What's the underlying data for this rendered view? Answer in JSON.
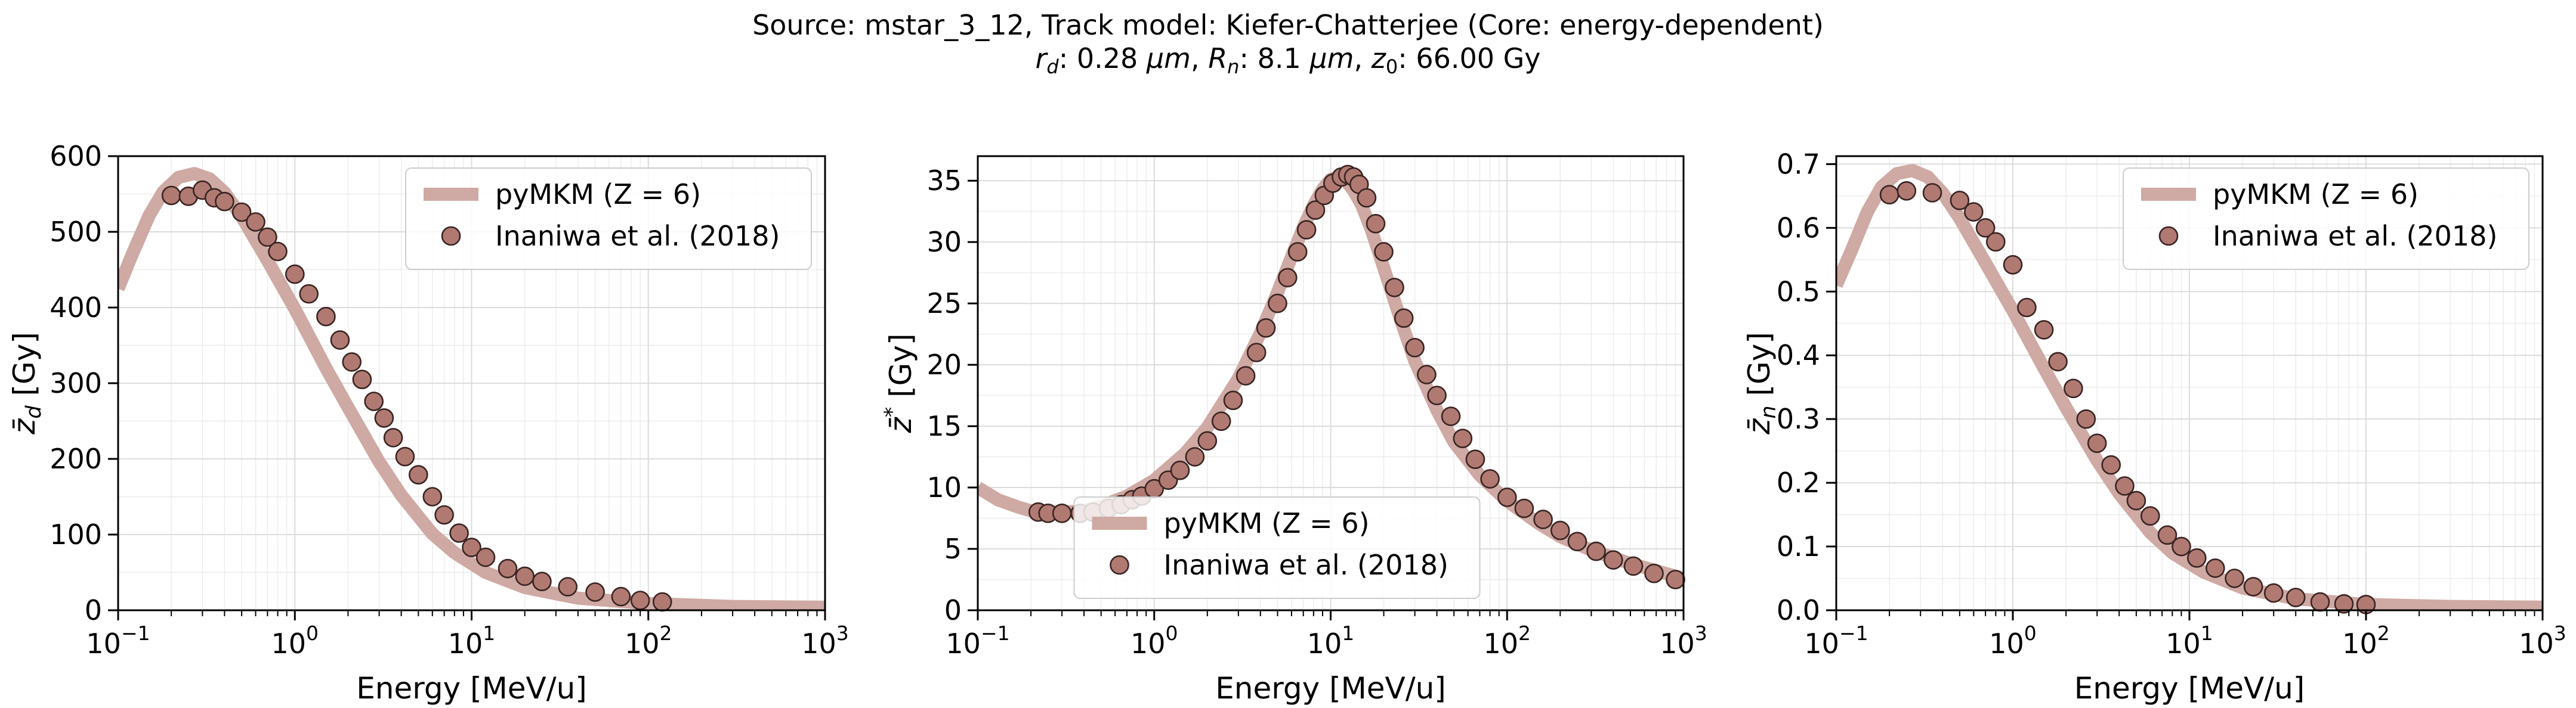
{
  "figure": {
    "title_line1": "Source: mstar_3_12, Track model: Kiefer-Chatterjee (Core: energy-dependent)",
    "title_line2": "r_d: 0.28 μm, R_n: 8.1 μm, z_0: 66.00 Gy",
    "title_parts": {
      "rd_sym": "r",
      "rd_sub": "d",
      "rd_val": ": 0.28 ",
      "rd_unit": "μm",
      "sep1": ", ",
      "rn_sym": "R",
      "rn_sub": "n",
      "rn_val": ": 8.1 ",
      "rn_unit": "μm",
      "sep2": ", ",
      "z0_sym": "z",
      "z0_sub": "0",
      "z0_val": ": 66.00 Gy"
    }
  },
  "colors": {
    "model_line": "#cfa9a3",
    "marker_face": "#b07a73",
    "marker_edge": "#3a2422"
  },
  "chart_data": [
    {
      "type": "line",
      "title": "",
      "xlabel": "Energy [MeV/u]",
      "ylabel": "z̄_d [Gy]",
      "ylabel_parts": {
        "sym": "z̄",
        "sub": "d",
        "sup": "",
        "unit": " [Gy]"
      },
      "xscale": "log",
      "xlim": [
        0.1,
        1000
      ],
      "ylim": [
        0,
        600
      ],
      "xticks": [
        {
          "label": "10",
          "exp": "−1"
        },
        {
          "label": "10",
          "exp": "0"
        },
        {
          "label": "10",
          "exp": "1"
        },
        {
          "label": "10",
          "exp": "2"
        },
        {
          "label": "10",
          "exp": "3"
        }
      ],
      "yticks": [
        "0",
        "100",
        "200",
        "300",
        "400",
        "500",
        "600"
      ],
      "yticks_values": [
        0,
        100,
        200,
        300,
        400,
        500,
        600
      ],
      "grid": true,
      "legend_position": "top-right",
      "series": [
        {
          "name": "pyMKM (Z = 6)",
          "kind": "line",
          "x": [
            0.1,
            0.12,
            0.15,
            0.18,
            0.22,
            0.27,
            0.33,
            0.4,
            0.5,
            0.7,
            1.0,
            1.5,
            2.0,
            3.0,
            4.0,
            6.0,
            8.0,
            12.0,
            20.0,
            40.0,
            100.0,
            300.0,
            1000.0
          ],
          "y": [
            425,
            470,
            522,
            553,
            572,
            577,
            570,
            552,
            520,
            462,
            398,
            320,
            268,
            196,
            152,
            101,
            76,
            50,
            30,
            16,
            9,
            5,
            4
          ]
        },
        {
          "name": "Inaniwa et al. (2018)",
          "kind": "markers",
          "x": [
            0.2,
            0.25,
            0.3,
            0.35,
            0.4,
            0.5,
            0.6,
            0.7,
            0.8,
            1.0,
            1.2,
            1.5,
            1.8,
            2.1,
            2.4,
            2.8,
            3.2,
            3.6,
            4.2,
            5.0,
            6.0,
            7.0,
            8.5,
            10.0,
            12.0,
            16.0,
            20.0,
            25.0,
            35.0,
            50.0,
            70.0,
            90.0,
            120.0
          ],
          "y": [
            548,
            547,
            555,
            545,
            540,
            526,
            513,
            493,
            474,
            444,
            418,
            388,
            357,
            328,
            305,
            276,
            254,
            228,
            203,
            179,
            150,
            126,
            102,
            83,
            70,
            55,
            45,
            38,
            31,
            24,
            18,
            13,
            11
          ]
        }
      ]
    },
    {
      "type": "line",
      "title": "",
      "xlabel": "Energy [MeV/u]",
      "ylabel": "z̄* [Gy]",
      "ylabel_parts": {
        "sym": "z̄",
        "sub": "",
        "sup": "*",
        "unit": " [Gy]"
      },
      "xscale": "log",
      "xlim": [
        0.1,
        1000
      ],
      "ylim": [
        0,
        37
      ],
      "xticks": [
        {
          "label": "10",
          "exp": "−1"
        },
        {
          "label": "10",
          "exp": "0"
        },
        {
          "label": "10",
          "exp": "1"
        },
        {
          "label": "10",
          "exp": "2"
        },
        {
          "label": "10",
          "exp": "3"
        }
      ],
      "yticks": [
        "0",
        "5",
        "10",
        "15",
        "20",
        "25",
        "30",
        "35"
      ],
      "yticks_values": [
        0,
        5,
        10,
        15,
        20,
        25,
        30,
        35
      ],
      "grid": true,
      "legend_position": "bottom-center",
      "series": [
        {
          "name": "pyMKM (Z = 6)",
          "kind": "line",
          "x": [
            0.1,
            0.13,
            0.17,
            0.2,
            0.25,
            0.3,
            0.4,
            0.5,
            0.7,
            1.0,
            1.5,
            2.0,
            3.0,
            4.0,
            5.0,
            6.0,
            7.0,
            8.0,
            9.0,
            10.0,
            11.0,
            12.0,
            13.5,
            15.0,
            17.0,
            20.0,
            25.0,
            30.0,
            40.0,
            50.0,
            70.0,
            100.0,
            150.0,
            200.0,
            300.0,
            500.0,
            1000.0
          ],
          "y": [
            10.0,
            9.0,
            8.4,
            8.1,
            8.0,
            8.0,
            8.1,
            8.5,
            9.3,
            10.6,
            12.8,
            14.9,
            18.9,
            22.6,
            25.9,
            28.8,
            31.2,
            33.0,
            34.3,
            35.1,
            35.3,
            35.1,
            34.2,
            33.0,
            31.0,
            27.9,
            23.6,
            20.3,
            16.3,
            13.7,
            11.0,
            8.9,
            7.1,
            6.0,
            4.9,
            3.8,
            2.6
          ]
        },
        {
          "name": "Inaniwa et al. (2018)",
          "kind": "markers",
          "x": [
            0.22,
            0.25,
            0.3,
            0.38,
            0.45,
            0.55,
            0.65,
            0.75,
            0.85,
            1.0,
            1.2,
            1.4,
            1.7,
            2.0,
            2.4,
            2.8,
            3.3,
            3.8,
            4.3,
            5.0,
            5.7,
            6.5,
            7.3,
            8.2,
            9.2,
            10.3,
            11.5,
            12.5,
            13.5,
            14.5,
            16.0,
            18.0,
            20.0,
            23.0,
            26.0,
            30.0,
            35.0,
            40.0,
            48.0,
            56.0,
            66.0,
            80.0,
            100.0,
            125.0,
            160.0,
            200.0,
            250.0,
            320.0,
            400.0,
            520.0,
            680.0,
            900.0
          ],
          "y": [
            8.0,
            7.9,
            7.9,
            7.9,
            8.0,
            8.3,
            8.6,
            9.0,
            9.3,
            9.9,
            10.6,
            11.4,
            12.5,
            13.8,
            15.4,
            17.1,
            19.1,
            21.0,
            23.0,
            25.0,
            27.1,
            29.2,
            31.0,
            32.6,
            33.8,
            34.8,
            35.3,
            35.5,
            35.3,
            34.7,
            33.6,
            31.5,
            29.2,
            26.3,
            23.8,
            21.4,
            19.2,
            17.5,
            15.8,
            14.0,
            12.3,
            10.7,
            9.2,
            8.3,
            7.4,
            6.5,
            5.6,
            4.8,
            4.1,
            3.6,
            3.0,
            2.5
          ]
        }
      ]
    },
    {
      "type": "line",
      "title": "",
      "xlabel": "Energy [MeV/u]",
      "ylabel": "z̄_n [Gy]",
      "ylabel_parts": {
        "sym": "z̄",
        "sub": "n",
        "sup": "",
        "unit": " [Gy]"
      },
      "xscale": "log",
      "xlim": [
        0.1,
        1000
      ],
      "ylim": [
        0,
        0.7125
      ],
      "xticks": [
        {
          "label": "10",
          "exp": "−1"
        },
        {
          "label": "10",
          "exp": "0"
        },
        {
          "label": "10",
          "exp": "1"
        },
        {
          "label": "10",
          "exp": "2"
        },
        {
          "label": "10",
          "exp": "3"
        }
      ],
      "yticks": [
        "0.0",
        "0.1",
        "0.2",
        "0.3",
        "0.4",
        "0.5",
        "0.6",
        "0.7"
      ],
      "yticks_values": [
        0,
        0.1,
        0.2,
        0.3,
        0.4,
        0.5,
        0.6,
        0.7
      ],
      "grid": true,
      "legend_position": "top-right",
      "series": [
        {
          "name": "pyMKM (Z = 6)",
          "kind": "line",
          "x": [
            0.1,
            0.12,
            0.15,
            0.18,
            0.22,
            0.27,
            0.33,
            0.4,
            0.5,
            0.7,
            1.0,
            1.5,
            2.0,
            3.0,
            4.0,
            6.0,
            8.0,
            12.0,
            20.0,
            40.0,
            100.0,
            300.0,
            1000.0
          ],
          "y": [
            0.51,
            0.56,
            0.625,
            0.664,
            0.685,
            0.69,
            0.68,
            0.655,
            0.615,
            0.545,
            0.47,
            0.38,
            0.318,
            0.235,
            0.183,
            0.122,
            0.09,
            0.06,
            0.035,
            0.018,
            0.009,
            0.006,
            0.005
          ]
        },
        {
          "name": "Inaniwa et al. (2018)",
          "kind": "markers",
          "x": [
            0.2,
            0.25,
            0.35,
            0.5,
            0.6,
            0.7,
            0.8,
            1.0,
            1.2,
            1.5,
            1.8,
            2.2,
            2.6,
            3.0,
            3.6,
            4.3,
            5.0,
            6.0,
            7.5,
            9.0,
            11.0,
            14.0,
            18.0,
            23.0,
            30.0,
            40.0,
            55.0,
            75.0,
            100.0
          ],
          "y": [
            0.652,
            0.658,
            0.655,
            0.643,
            0.625,
            0.6,
            0.578,
            0.542,
            0.475,
            0.44,
            0.39,
            0.348,
            0.3,
            0.262,
            0.228,
            0.195,
            0.172,
            0.148,
            0.118,
            0.1,
            0.082,
            0.066,
            0.05,
            0.037,
            0.027,
            0.02,
            0.013,
            0.01,
            0.009
          ]
        }
      ]
    }
  ]
}
